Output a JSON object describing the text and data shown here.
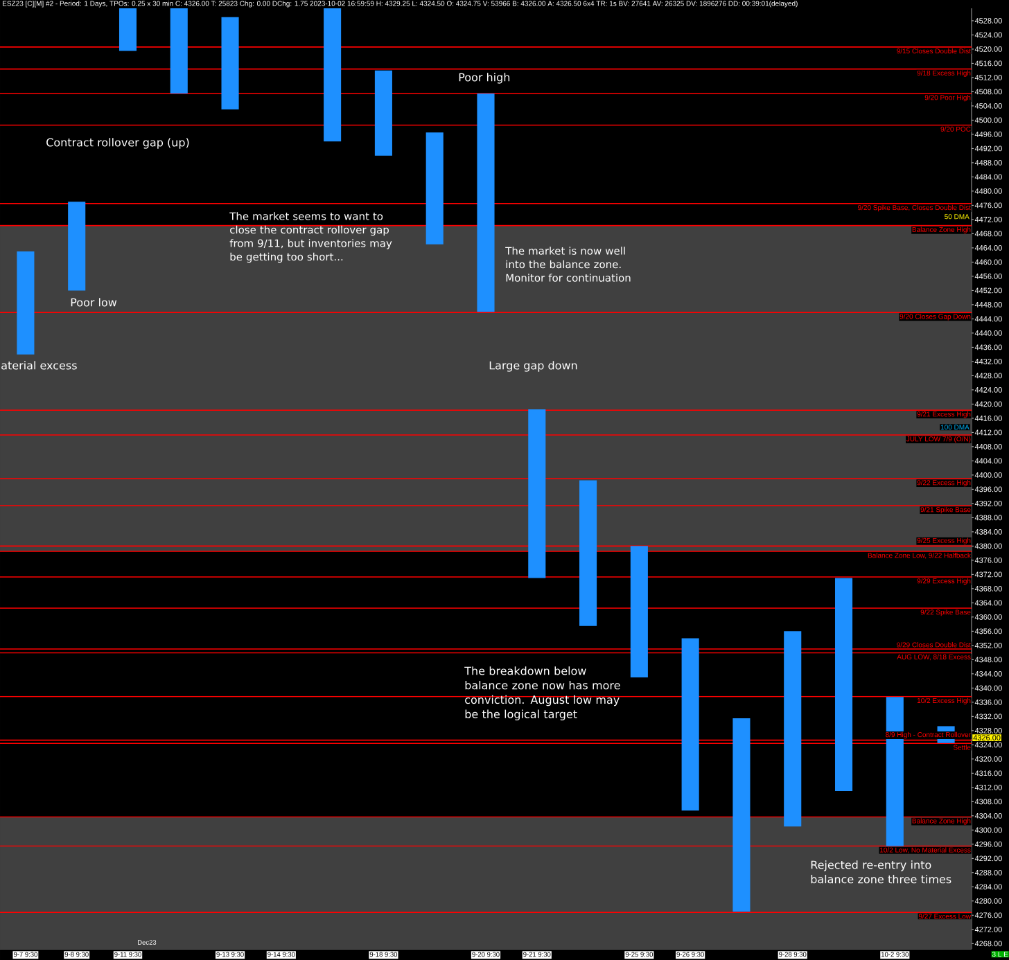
{
  "chart_data": {
    "type": "bar",
    "title": "ESZ23 [C][M] #2 - Period: 1 Days, TPOs: 0.25 x 30 min C: 4326.00 T: 25823 Chg: 0.00 DChg: 1.75 2023-10-02 16:59:59 H: 4329.25 L: 4324.50 O: 4324.75 V: 53966 B: 4326.00 A: 4326.50 6x4 TR: 1s BV: 27641 AV: 26325 DV: 1896276 DD: 00:39:01(delayed)",
    "categories": [
      "9-7 9:30",
      "9-8 9:30",
      "9-11 9:30",
      null,
      "9-13 9:30",
      "9-14 9:30",
      null,
      "9-18 9:30",
      null,
      "9-20 9:30",
      "9-21 9:30",
      null,
      "9-25 9:30",
      "9-26 9:30",
      null,
      "9-28 9:30",
      null,
      "10-2 9:30",
      null
    ],
    "base": [
      4434,
      4452,
      4519.5,
      4507.5,
      4503,
      null,
      4494,
      4490,
      4465,
      4446,
      4371,
      4357.5,
      4343,
      4305.5,
      4277,
      4301,
      4311,
      4295.5,
      4324.5
    ],
    "values": [
      29,
      25,
      12,
      24,
      26,
      null,
      37.5,
      24,
      31.5,
      61.5,
      47.5,
      41,
      37,
      48.5,
      54.5,
      55,
      60,
      42,
      4.75
    ],
    "color": "#1e90ff",
    "ylim": [
      4266.5,
      4531.5
    ],
    "yticks": [
      {
        "value": 4268,
        "label": "4268.00"
      },
      {
        "value": 4272,
        "label": "4272.00"
      },
      {
        "value": 4276,
        "label": "4276.00"
      },
      {
        "value": 4280,
        "label": "4280.00"
      },
      {
        "value": 4284,
        "label": "4284.00"
      },
      {
        "value": 4288,
        "label": "4288.00"
      },
      {
        "value": 4292,
        "label": "4292.00"
      },
      {
        "value": 4296,
        "label": "4296.00"
      },
      {
        "value": 4300,
        "label": "4300.00"
      },
      {
        "value": 4304,
        "label": "4304.00"
      },
      {
        "value": 4308,
        "label": "4308.00"
      },
      {
        "value": 4312,
        "label": "4312.00"
      },
      {
        "value": 4316,
        "label": "4316.00"
      },
      {
        "value": 4320,
        "label": "4320.00"
      },
      {
        "value": 4324,
        "label": "4324.00"
      },
      {
        "value": 4328,
        "label": "4328.00"
      },
      {
        "value": 4332,
        "label": "4332.00"
      },
      {
        "value": 4336,
        "label": "4336.00"
      },
      {
        "value": 4340,
        "label": "4340.00"
      },
      {
        "value": 4344,
        "label": "4344.00"
      },
      {
        "value": 4348,
        "label": "4348.00"
      },
      {
        "value": 4352,
        "label": "4352.00"
      },
      {
        "value": 4356,
        "label": "4356.00"
      },
      {
        "value": 4360,
        "label": "4360.00"
      },
      {
        "value": 4364,
        "label": "4364.00"
      },
      {
        "value": 4368,
        "label": "4368.00"
      },
      {
        "value": 4372,
        "label": "4372.00"
      },
      {
        "value": 4376,
        "label": "4376.00"
      },
      {
        "value": 4380,
        "label": "4380.00"
      },
      {
        "value": 4384,
        "label": "4384.00"
      },
      {
        "value": 4388,
        "label": "4388.00"
      },
      {
        "value": 4392,
        "label": "4392.00"
      },
      {
        "value": 4396,
        "label": "4396.00"
      },
      {
        "value": 4400,
        "label": "4400.00"
      },
      {
        "value": 4404,
        "label": "4404.00"
      },
      {
        "value": 4408,
        "label": "4408.00"
      },
      {
        "value": 4412,
        "label": "4412.00"
      },
      {
        "value": 4416,
        "label": "4416.00"
      },
      {
        "value": 4420,
        "label": "4420.00"
      },
      {
        "value": 4424,
        "label": "4424.00"
      },
      {
        "value": 4428,
        "label": "4428.00"
      },
      {
        "value": 4432,
        "label": "4432.00"
      },
      {
        "value": 4436,
        "label": "4436.00"
      },
      {
        "value": 4440,
        "label": "4440.00"
      },
      {
        "value": 4444,
        "label": "4444.00"
      },
      {
        "value": 4448,
        "label": "4448.00"
      },
      {
        "value": 4452,
        "label": "4452.00"
      },
      {
        "value": 4456,
        "label": "4456.00"
      },
      {
        "value": 4460,
        "label": "4460.00"
      },
      {
        "value": 4464,
        "label": "4464.00"
      },
      {
        "value": 4468,
        "label": "4468.00"
      },
      {
        "value": 4472,
        "label": "4472.00"
      },
      {
        "value": 4476,
        "label": "4476.00"
      },
      {
        "value": 4480,
        "label": "4480.00"
      },
      {
        "value": 4484,
        "label": "4484.00"
      },
      {
        "value": 4488,
        "label": "4488.00"
      },
      {
        "value": 4492,
        "label": "4492.00"
      },
      {
        "value": 4496,
        "label": "4496.00"
      },
      {
        "value": 4500,
        "label": "4500.00"
      },
      {
        "value": 4504,
        "label": "4504.00"
      },
      {
        "value": 4508,
        "label": "4508.00"
      },
      {
        "value": 4512,
        "label": "4512.00"
      },
      {
        "value": 4516,
        "label": "4516.00"
      },
      {
        "value": 4520,
        "label": "4520.00"
      },
      {
        "value": 4524,
        "label": "4524.00"
      },
      {
        "value": 4528,
        "label": "4528.00"
      }
    ],
    "bands": [
      {
        "axis": "y",
        "from": 4378.5,
        "to": 4470.3,
        "color": "#404040"
      },
      {
        "axis": "y",
        "from": 4266.5,
        "to": 4303.7,
        "color": "#404040"
      }
    ],
    "ref_lines": [
      {
        "axis": "y",
        "value": 4520.6,
        "label": "9/15 Closes Double Dist",
        "color": "#ff0000"
      },
      {
        "axis": "y",
        "value": 4514.4,
        "label": "9/18 Excess High",
        "color": "#ff0000"
      },
      {
        "axis": "y",
        "value": 4507.5,
        "label": "9/20 Poor High",
        "color": "#ff0000"
      },
      {
        "axis": "y",
        "value": 4498.6,
        "label": "9/20 POC",
        "color": "#ff0000"
      },
      {
        "axis": "y",
        "value": 4476.5,
        "label": "9/20 Spike Base, Closes Double Dist",
        "color": "#ff0000"
      },
      {
        "axis": "y",
        "value": 4470.3,
        "label": "Balance Zone High",
        "color": "#ff0000"
      },
      {
        "axis": "y",
        "value": 4445.8,
        "label": "9/20 Closes Gap Down",
        "color": "#ff0000"
      },
      {
        "axis": "y",
        "value": 4418.3,
        "label": "9/21 Excess High",
        "color": "#ff0000"
      },
      {
        "axis": "y",
        "value": 4411.3,
        "label": "JULY LOW 7/9 (O/N)",
        "color": "#ff0000"
      },
      {
        "axis": "y",
        "value": 4399,
        "label": "9/22 Excess High",
        "color": "#ff0000"
      },
      {
        "axis": "y",
        "value": 4391.4,
        "label": "9/21 Spike Base",
        "color": "#ff0000"
      },
      {
        "axis": "y",
        "value": 4380,
        "label": "9/25 Excess High",
        "color": "#ff0000"
      },
      {
        "axis": "y",
        "value": 4378.5,
        "label": "Balance Zone Low, 9/22 Halfback",
        "color": "#ff0000"
      },
      {
        "axis": "y",
        "value": 4371.3,
        "label": "9/29 Excess High",
        "color": "#ff0000"
      },
      {
        "axis": "y",
        "value": 4362.5,
        "label": "9/22 Spike Base",
        "color": "#ff0000"
      },
      {
        "axis": "y",
        "value": 4351,
        "label": "9/29 Closes Double Dist",
        "color": "#ff0000"
      },
      {
        "axis": "y",
        "value": 4349.9,
        "label": "AUG LOW, 8/18 Excess",
        "color": "#ff0000"
      },
      {
        "axis": "y",
        "value": 4337.6,
        "label": "10/2 Excess High",
        "color": "#ff0000"
      },
      {
        "axis": "y",
        "value": 4325.3,
        "label": "8/9 High - Contract Rollover",
        "color": "#ff0000"
      },
      {
        "axis": "y",
        "value": 4324.4,
        "label": "Settle",
        "color": "#ff0000"
      },
      {
        "axis": "y",
        "value": 4303.7,
        "label": "Balance Zone High",
        "color": "#ff0000"
      },
      {
        "axis": "y",
        "value": 4295.5,
        "label": "10/2 Low, No Material Excess",
        "color": "#ff0000"
      },
      {
        "axis": "y",
        "value": 4276.8,
        "label": "9/27 Excess Low",
        "color": "#ff0000"
      }
    ],
    "annotations": [
      "Contract rollover gap (up)",
      "The market seems to want to close the contract rollover gap from 9/11, but inventories may be getting too short...",
      "Poor low",
      "aterial excess",
      "Poor high",
      "The market is now well into the balance zone. Monitor for continuation",
      "Large gap down",
      "The breakdown below balance zone now has more conviction. August low may be the logical target",
      "Rejected re-entry into balance zone three times",
      "Dec23",
      "50 DMA",
      "100 DMA",
      "4326.00",
      "3 L E"
    ]
  }
}
